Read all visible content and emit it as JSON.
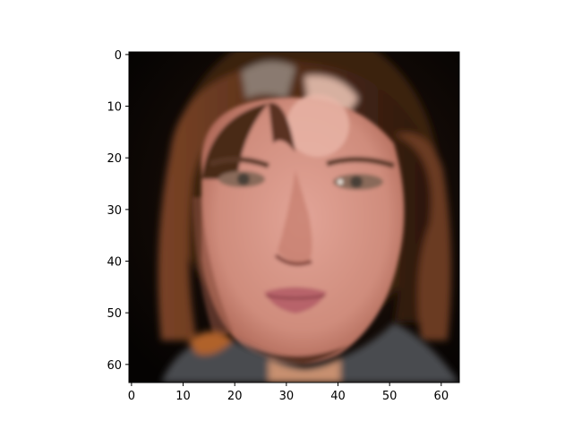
{
  "figure": {
    "image_description_name": "face-image",
    "axes": {
      "x_ticks": [
        {
          "value": 0,
          "label": "0"
        },
        {
          "value": 10,
          "label": "10"
        },
        {
          "value": 20,
          "label": "20"
        },
        {
          "value": 30,
          "label": "30"
        },
        {
          "value": 40,
          "label": "40"
        },
        {
          "value": 50,
          "label": "50"
        },
        {
          "value": 60,
          "label": "60"
        }
      ],
      "y_ticks": [
        {
          "value": 0,
          "label": "0"
        },
        {
          "value": 10,
          "label": "10"
        },
        {
          "value": 20,
          "label": "20"
        },
        {
          "value": 30,
          "label": "30"
        },
        {
          "value": 40,
          "label": "40"
        },
        {
          "value": 50,
          "label": "50"
        },
        {
          "value": 60,
          "label": "60"
        }
      ],
      "x_range": [
        -0.5,
        63.5
      ],
      "y_range": [
        -0.5,
        63.5
      ],
      "y_inverted": true
    },
    "colors": {
      "background": "#0b0806",
      "hair_dark": "#2a160c",
      "hair_brown": "#6b3a1c",
      "hair_light": "#b07a55",
      "skin": "#d99a8a",
      "skin_shadow": "#b5705f",
      "lips": "#b8636a",
      "eye": "#5a5048"
    }
  }
}
